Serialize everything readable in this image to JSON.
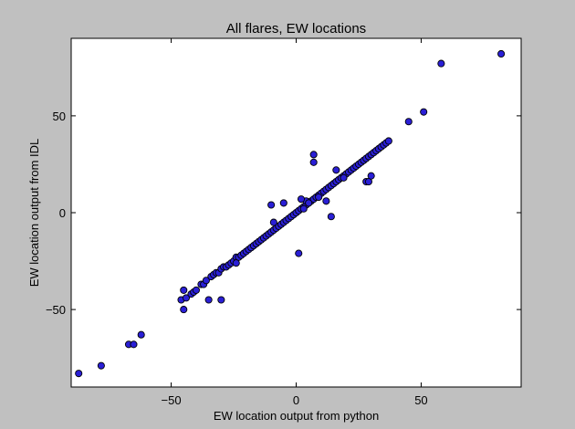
{
  "chart_data": {
    "type": "scatter",
    "title": "All flares, EW locations",
    "xlabel": "EW location output from python",
    "ylabel": "EW location output from IDL",
    "xlim": [
      -90,
      90
    ],
    "ylim": [
      -90,
      90
    ],
    "xticks": [
      -50,
      0,
      50
    ],
    "xtick_labels": [
      "−50",
      "0",
      "50"
    ],
    "yticks": [
      -50,
      0,
      50
    ],
    "ytick_labels": [
      "−50",
      "0",
      "50"
    ],
    "grid": false,
    "legend": "none",
    "marker_color": "#2a1fd6",
    "marker_edge": "#000000",
    "series": [
      {
        "x": [
          -87,
          -78,
          -67,
          -65,
          -62,
          -46,
          -45,
          -44,
          -42,
          -41,
          -40,
          -38,
          -37,
          -36,
          -34,
          -33,
          -32,
          -31,
          -30,
          -29,
          -28,
          -27,
          -26,
          -25,
          -24,
          -23,
          -22,
          -21,
          -20,
          -19,
          -18,
          -17,
          -16,
          -15,
          -14,
          -13,
          -12,
          -11,
          -10,
          -9,
          -8,
          -7,
          -6,
          -5,
          -4,
          -3,
          -2,
          -1,
          0,
          1,
          2,
          3,
          4,
          5,
          6,
          7,
          8,
          9,
          10,
          11,
          12,
          13,
          14,
          15,
          16,
          17,
          18,
          19,
          20,
          21,
          22,
          23,
          24,
          25,
          26,
          27,
          28,
          29,
          30,
          31,
          32,
          33,
          34,
          35,
          36,
          37,
          45,
          51,
          58,
          82,
          -45,
          -35,
          -30,
          -24,
          -9,
          -10,
          -5,
          1,
          4,
          7,
          9,
          12,
          14,
          19,
          28,
          29,
          30,
          7,
          2,
          5,
          16,
          3
        ],
        "y": [
          -83,
          -79,
          -68,
          -68,
          -63,
          -45,
          -50,
          -44,
          -42,
          -41,
          -40,
          -37,
          -37,
          -35,
          -33,
          -32,
          -31,
          -31,
          -29,
          -28,
          -28,
          -27,
          -26,
          -25,
          -23,
          -23,
          -22,
          -21,
          -20,
          -19,
          -18,
          -17,
          -16,
          -15,
          -14,
          -13,
          -12,
          -11,
          -10,
          -9,
          -8,
          -7,
          -6,
          -5,
          -4,
          -3,
          -2,
          -1,
          0,
          1,
          2,
          3,
          4,
          5,
          6,
          7,
          8,
          9,
          10,
          11,
          12,
          13,
          14,
          15,
          16,
          17,
          18,
          19,
          20,
          21,
          22,
          23,
          24,
          25,
          26,
          27,
          28,
          29,
          30,
          31,
          32,
          33,
          34,
          35,
          36,
          37,
          47,
          52,
          77,
          82,
          -40,
          -45,
          -45,
          -26,
          -5,
          4,
          5,
          -21,
          6,
          30,
          8,
          6,
          -2,
          18,
          16,
          16,
          19,
          26,
          7,
          5,
          22,
          2
        ]
      }
    ]
  }
}
